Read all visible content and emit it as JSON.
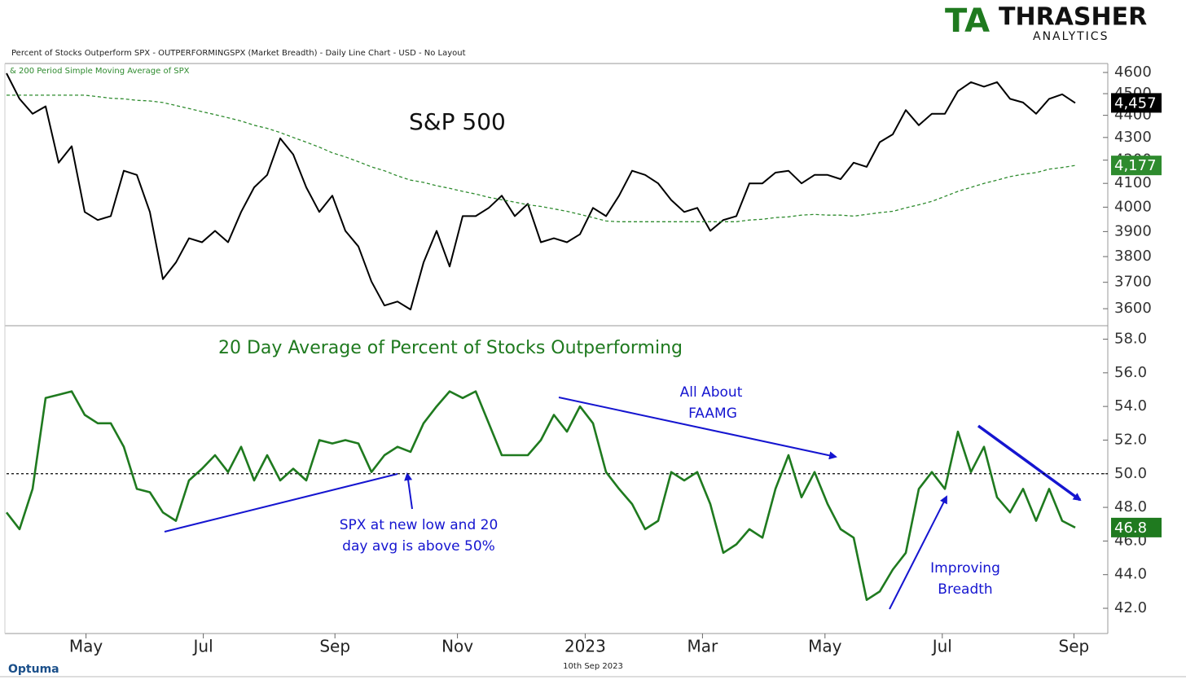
{
  "header": "Percent of Stocks Outperform SPX  - OUTPERFORMINGSPX (Market Breadth) - Daily Line Chart - USD - No Layout",
  "logo": {
    "mark": "TA",
    "name": "THRASHER",
    "sub": "ANALYTICS"
  },
  "footer": {
    "brand": "Optuma",
    "date": "10th Sep 2023"
  },
  "chart_data": [
    {
      "type": "line",
      "title": "S&P 500",
      "log_scale": true,
      "ylim": [
        3537,
        4643
      ],
      "yticks": [
        3600,
        3700,
        3800,
        3900,
        4000,
        4100,
        4200,
        4300,
        4400,
        4500,
        4600
      ],
      "series": [
        {
          "color": "#000000",
          "width": 2,
          "last_label": "4,457",
          "label_color": "#000000",
          "values": [
            4596,
            4476,
            4407,
            4441,
            4189,
            4261,
            3980,
            3947,
            3963,
            4154,
            4136,
            3980,
            3712,
            3777,
            3873,
            3857,
            3903,
            3857,
            3980,
            4083,
            4136,
            4296,
            4225,
            4083,
            3980,
            4048,
            3903,
            3840,
            3703,
            3612,
            3627,
            3597,
            3777,
            3903,
            3761,
            3963,
            3963,
            3997,
            4048,
            3963,
            4014,
            3857,
            3873,
            3857,
            3889,
            3997,
            3963,
            4048,
            4154,
            4136,
            4100,
            4030,
            3980,
            3997,
            3903,
            3947,
            3963,
            4100,
            4100,
            4146,
            4154,
            4100,
            4136,
            4136,
            4118,
            4189,
            4171,
            4279,
            4314,
            4424,
            4355,
            4407,
            4407,
            4512,
            4554,
            4533,
            4554,
            4476,
            4459,
            4407,
            4476,
            4497,
            4457
          ]
        },
        {
          "name": "& 200 Period Simple Moving Average of SPX",
          "color": "#2e8b2e",
          "width": 1.3,
          "dash": true,
          "last_label": "4,177",
          "label_color": "#2e8b2e",
          "values": [
            4493,
            4493,
            4493,
            4493,
            4493,
            4493,
            4493,
            4486,
            4479,
            4476,
            4469,
            4466,
            4459,
            4445,
            4431,
            4417,
            4403,
            4389,
            4374,
            4355,
            4341,
            4322,
            4300,
            4279,
            4257,
            4232,
            4214,
            4193,
            4171,
            4154,
            4132,
            4114,
            4104,
            4090,
            4079,
            4066,
            4055,
            4041,
            4031,
            4021,
            4010,
            4003,
            3993,
            3983,
            3970,
            3957,
            3943,
            3940,
            3940,
            3940,
            3940,
            3940,
            3940,
            3940,
            3940,
            3940,
            3940,
            3947,
            3950,
            3957,
            3960,
            3967,
            3970,
            3967,
            3967,
            3963,
            3970,
            3977,
            3983,
            3997,
            4010,
            4024,
            4045,
            4066,
            4083,
            4100,
            4114,
            4129,
            4139,
            4146,
            4161,
            4168,
            4177
          ]
        }
      ]
    },
    {
      "type": "line",
      "title": "20 Day Average of Percent of Stocks Outperforming",
      "ylim": [
        40.5,
        58.8
      ],
      "yticks": [
        {
          "value": 42,
          "label": "42.0"
        },
        {
          "value": 44,
          "label": "44.0"
        },
        {
          "value": 46,
          "label": "46.0"
        },
        {
          "value": 48,
          "label": "48.0"
        },
        {
          "value": 50,
          "label": "50.0"
        },
        {
          "value": 52,
          "label": "52.0"
        },
        {
          "value": 54,
          "label": "54.0"
        },
        {
          "value": 56,
          "label": "56.0"
        },
        {
          "value": 58,
          "label": "58.0"
        }
      ],
      "reference_line": 50,
      "series": [
        {
          "color": "#1f7a1f",
          "width": 2.6,
          "last_label": "46.8",
          "label_color": "#1f7a1f",
          "values": [
            47.7,
            46.7,
            49.1,
            54.5,
            54.7,
            54.9,
            53.5,
            53.0,
            53.0,
            51.6,
            49.1,
            48.9,
            47.7,
            47.2,
            49.6,
            50.3,
            51.1,
            50.1,
            51.6,
            49.6,
            51.1,
            49.6,
            50.3,
            49.6,
            52.0,
            51.8,
            52.0,
            51.8,
            50.1,
            51.1,
            51.6,
            51.3,
            53.0,
            54.0,
            54.9,
            54.5,
            54.9,
            53.0,
            51.1,
            51.1,
            51.1,
            52.0,
            53.5,
            52.5,
            54.0,
            53.0,
            50.1,
            49.1,
            48.2,
            46.7,
            47.2,
            50.1,
            49.6,
            50.1,
            48.2,
            45.3,
            45.8,
            46.7,
            46.2,
            49.1,
            51.1,
            48.6,
            50.1,
            48.2,
            46.7,
            46.2,
            42.5,
            43.0,
            44.3,
            45.3,
            49.1,
            50.1,
            49.1,
            52.5,
            50.1,
            51.6,
            48.6,
            47.7,
            49.1,
            47.2,
            49.1,
            47.2,
            46.8
          ]
        }
      ],
      "xticks": [
        {
          "value": 6.1,
          "label": "May"
        },
        {
          "value": 15.1,
          "label": "Jul"
        },
        {
          "value": 25.2,
          "label": "Sep"
        },
        {
          "value": 34.6,
          "label": "Nov"
        },
        {
          "value": 44.4,
          "label": "2023"
        },
        {
          "value": 53.4,
          "label": "Mar"
        },
        {
          "value": 62.8,
          "label": "May"
        },
        {
          "value": 71.8,
          "label": "Jul"
        },
        {
          "value": 81.9,
          "label": "Sep"
        }
      ],
      "annotations": [
        {
          "lines": [
            "All About",
            "FAAMG"
          ]
        },
        {
          "lines": [
            "SPX at new low and 20",
            "day avg is above 50%"
          ]
        },
        {
          "lines": [
            "Improving",
            "Breadth"
          ]
        }
      ]
    }
  ]
}
